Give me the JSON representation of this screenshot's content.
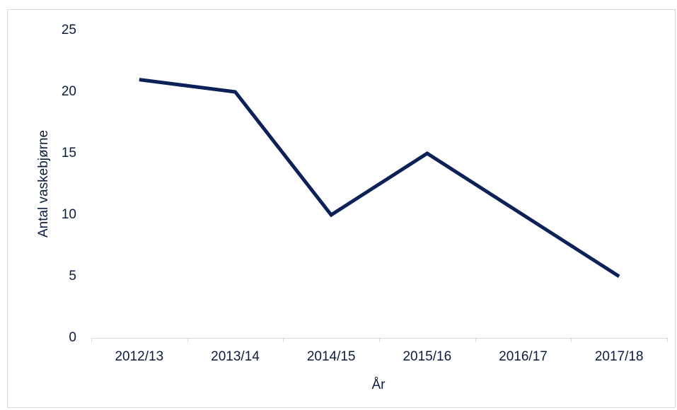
{
  "chart_data": {
    "type": "line",
    "categories": [
      "2012/13",
      "2013/14",
      "2014/15",
      "2015/16",
      "2016/17",
      "2017/18"
    ],
    "series": [
      {
        "name": "Antal vaskebjørne",
        "color": "#0b2157",
        "values": [
          21,
          20,
          10,
          15,
          10,
          5
        ]
      }
    ],
    "ylim": [
      0,
      25
    ],
    "yticks": [
      0,
      5,
      10,
      15,
      20,
      25
    ],
    "xlabel": "År",
    "ylabel": "Antal vaskebjørne",
    "grid": false,
    "legend": false
  }
}
